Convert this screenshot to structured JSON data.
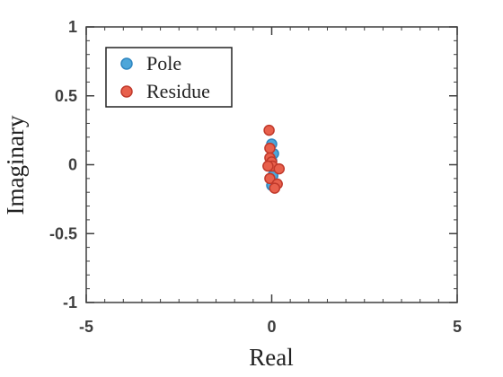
{
  "chart_data": {
    "type": "scatter",
    "xlabel": "Real",
    "ylabel": "Imaginary",
    "xlim": [
      -5,
      5
    ],
    "ylim": [
      -1,
      1
    ],
    "x_ticks": [
      -5,
      0,
      5
    ],
    "y_ticks": [
      1,
      0.5,
      0,
      -0.5,
      -1
    ],
    "x_tick_labels": [
      "-5",
      "0",
      "5"
    ],
    "y_tick_labels": [
      "1",
      "0.5",
      "0",
      "-0.5",
      "-1"
    ],
    "grid": false,
    "legend_position": "top-left",
    "series": [
      {
        "name": "Pole",
        "color": "#4da6d9",
        "edge": "#2e86c1",
        "points": [
          {
            "x": 0.0,
            "y": 0.15
          },
          {
            "x": 0.05,
            "y": 0.08
          },
          {
            "x": 0.0,
            "y": 0.03
          },
          {
            "x": 0.02,
            "y": -0.02
          },
          {
            "x": 0.03,
            "y": -0.08
          },
          {
            "x": 0.0,
            "y": -0.15
          }
        ]
      },
      {
        "name": "Residue",
        "color": "#e8604c",
        "edge": "#c0392b",
        "points": [
          {
            "x": -0.07,
            "y": 0.25
          },
          {
            "x": -0.05,
            "y": 0.12
          },
          {
            "x": -0.05,
            "y": 0.05
          },
          {
            "x": 0.0,
            "y": 0.02
          },
          {
            "x": 0.02,
            "y": -0.01
          },
          {
            "x": -0.1,
            "y": -0.01
          },
          {
            "x": 0.2,
            "y": -0.03
          },
          {
            "x": -0.05,
            "y": -0.1
          },
          {
            "x": 0.15,
            "y": -0.14
          },
          {
            "x": 0.08,
            "y": -0.17
          }
        ]
      }
    ]
  }
}
